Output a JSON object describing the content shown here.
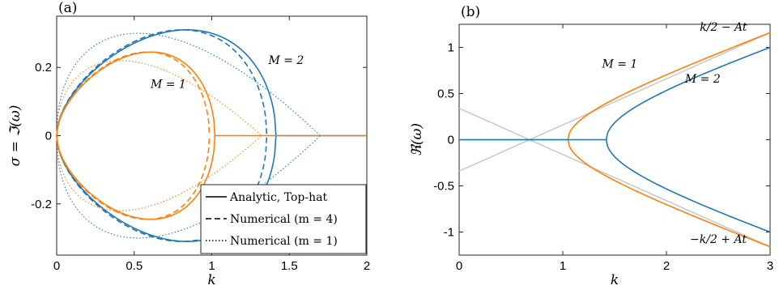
{
  "chart_data": [
    {
      "type": "line",
      "panel_label": "(a)",
      "xlabel": "k",
      "ylabel": "σ = ℑ(ω)",
      "xlim": [
        0,
        2
      ],
      "ylim": [
        -0.35,
        0.35
      ],
      "xticks": [
        0,
        0.5,
        1,
        1.5,
        2
      ],
      "xtick_labels": [
        "0",
        "0.5",
        "1",
        "1.5",
        "2"
      ],
      "yticks": [
        -0.2,
        0,
        0.2
      ],
      "ytick_labels": [
        "-0.2",
        "0",
        "0.2"
      ],
      "grid": false,
      "legend": {
        "placement": "bottom-right",
        "entries": [
          {
            "label": "Analytic, Top-hat",
            "style": "solid"
          },
          {
            "label": "Numerical (m = 4)",
            "style": "dashed"
          },
          {
            "label": "Numerical (m = 1)",
            "style": "dotted"
          }
        ]
      },
      "annotations": [
        {
          "text": "M = 1",
          "x": 0.72,
          "y": 0.14
        },
        {
          "text": "M = 2",
          "x": 1.48,
          "y": 0.21
        }
      ],
      "curve_groups": [
        {
          "color": "#1f77b4",
          "M": 2,
          "analytic": {
            "k_max": 1.414,
            "sigma_peak": 0.31,
            "k_peak": 0.7
          },
          "numerical_m4": {
            "k_max": 1.355,
            "sigma_peak": 0.31,
            "k_peak": 0.72
          },
          "numerical_m1": {
            "k_max": 1.7,
            "sigma_peak": 0.3,
            "k_peak": 0.6
          }
        },
        {
          "color": "#ff7f0e",
          "M": 1,
          "analytic": {
            "k_max": 1.02,
            "sigma_peak": 0.245,
            "k_peak": 0.52
          },
          "numerical_m4": {
            "k_max": 0.985,
            "sigma_peak": 0.245,
            "k_peak": 0.52
          },
          "numerical_m1": {
            "k_max": 1.32,
            "sigma_peak": 0.22,
            "k_peak": 0.42
          }
        }
      ]
    },
    {
      "type": "line",
      "panel_label": "(b)",
      "xlabel": "k",
      "ylabel": "ℜ(ω)",
      "xlim": [
        0,
        3
      ],
      "ylim": [
        -1.25,
        1.25
      ],
      "xticks": [
        0,
        1,
        2,
        3
      ],
      "xtick_labels": [
        "0",
        "1",
        "2",
        "3"
      ],
      "yticks": [
        -1,
        -0.5,
        0,
        0.5,
        1
      ],
      "ytick_labels": [
        "-1",
        "-0.5",
        "0",
        "0.5",
        "1"
      ],
      "grid": false,
      "annotations": [
        {
          "text": "k/2 − At",
          "x": 2.55,
          "y": 1.18
        },
        {
          "text": "M = 1",
          "x": 1.55,
          "y": 0.78
        },
        {
          "text": "M = 2",
          "x": 2.35,
          "y": 0.62
        },
        {
          "text": "−k/2 + At",
          "x": 2.5,
          "y": -1.12
        }
      ],
      "series": [
        {
          "color": "#ff7f0e",
          "M": 1,
          "k_c": 1.05
        },
        {
          "color": "#1f77b4",
          "M": 2,
          "k_c": 1.42
        }
      ],
      "asymptotes": {
        "color": "#c8c8c8",
        "slope": 0.5,
        "crossing_k": 0.68
      }
    }
  ],
  "ui": {
    "legend_a": [
      "Analytic, Top-hat",
      "Numerical (m = 4)",
      "Numerical (m = 1)"
    ]
  }
}
